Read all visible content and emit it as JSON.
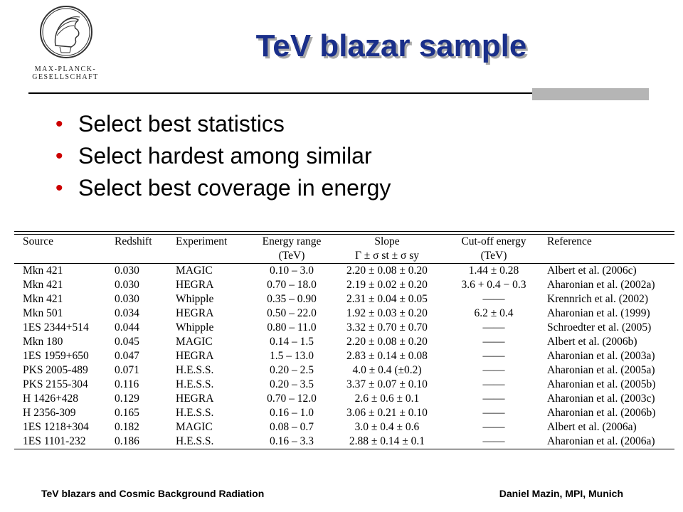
{
  "logo": {
    "text": "MAX-PLANCK-GESELLSCHAFT",
    "icon": "minerva-head-icon"
  },
  "title": "TeV blazar sample",
  "bullets": [
    "Select best statistics",
    "Select hardest among similar",
    "Select best coverage in energy"
  ],
  "table": {
    "headers_row1": [
      "Source",
      "Redshift",
      "Experiment",
      "Energy range",
      "Slope",
      "Cut-off energy",
      "Reference"
    ],
    "headers_row2": [
      "",
      "",
      "",
      "(TeV)",
      "Γ ± σ st ± σ sy",
      "(TeV)",
      ""
    ],
    "rows": [
      [
        "Mkn 421",
        "0.030",
        "MAGIC",
        "0.10 – 3.0",
        "2.20 ± 0.08 ± 0.20",
        "1.44 ± 0.28",
        "Albert et al. (2006c)"
      ],
      [
        "Mkn 421",
        "0.030",
        "HEGRA",
        "0.70 – 18.0",
        "2.19 ± 0.02 ± 0.20",
        "3.6 + 0.4 − 0.3",
        "Aharonian et al. (2002a)"
      ],
      [
        "Mkn 421",
        "0.030",
        "Whipple",
        "0.35 – 0.90",
        "2.31 ± 0.04 ± 0.05",
        "——",
        "Krennrich et al. (2002)"
      ],
      [
        "Mkn 501",
        "0.034",
        "HEGRA",
        "0.50 – 22.0",
        "1.92 ± 0.03 ± 0.20",
        "6.2 ± 0.4",
        "Aharonian et al. (1999)"
      ],
      [
        "1ES 2344+514",
        "0.044",
        "Whipple",
        "0.80 – 11.0",
        "3.32 ± 0.70 ± 0.70",
        "——",
        "Schroedter et al. (2005)"
      ],
      [
        "Mkn 180",
        "0.045",
        "MAGIC",
        "0.14 – 1.5",
        "2.20 ± 0.08 ± 0.20",
        "——",
        "Albert et al. (2006b)"
      ],
      [
        "1ES 1959+650",
        "0.047",
        "HEGRA",
        "1.5 – 13.0",
        "2.83 ± 0.14 ± 0.08",
        "——",
        "Aharonian et al. (2003a)"
      ],
      [
        "PKS 2005-489",
        "0.071",
        "H.E.S.S.",
        "0.20 – 2.5",
        "4.0 ± 0.4 (±0.2)",
        "——",
        "Aharonian et al. (2005a)"
      ],
      [
        "PKS 2155-304",
        "0.116",
        "H.E.S.S.",
        "0.20 – 3.5",
        "3.37 ± 0.07 ± 0.10",
        "——",
        "Aharonian et al. (2005b)"
      ],
      [
        "H 1426+428",
        "0.129",
        "HEGRA",
        "0.70 – 12.0",
        "2.6 ± 0.6 ± 0.1",
        "——",
        "Aharonian et al. (2003c)"
      ],
      [
        "H 2356-309",
        "0.165",
        "H.E.S.S.",
        "0.16 – 1.0",
        "3.06 ± 0.21 ± 0.10",
        "——",
        "Aharonian et al. (2006b)"
      ],
      [
        "1ES 1218+304",
        "0.182",
        "MAGIC",
        "0.08 – 0.7",
        "3.0 ± 0.4 ± 0.6",
        "——",
        "Albert et al. (2006a)"
      ],
      [
        "1ES 1101-232",
        "0.186",
        "H.E.S.S.",
        "0.16 – 3.3",
        "2.88 ± 0.14 ± 0.1",
        "——",
        "Aharonian et al. (2006a)"
      ]
    ]
  },
  "footer": {
    "left": "TeV blazars and Cosmic Background Radiation",
    "right": "Daniel Mazin, MPI, Munich"
  },
  "colors": {
    "title": "#1a2f8a",
    "title_shadow": "#a9a9a9",
    "bullet": "#cc0000",
    "grey_bar": "#b5b5b5"
  }
}
